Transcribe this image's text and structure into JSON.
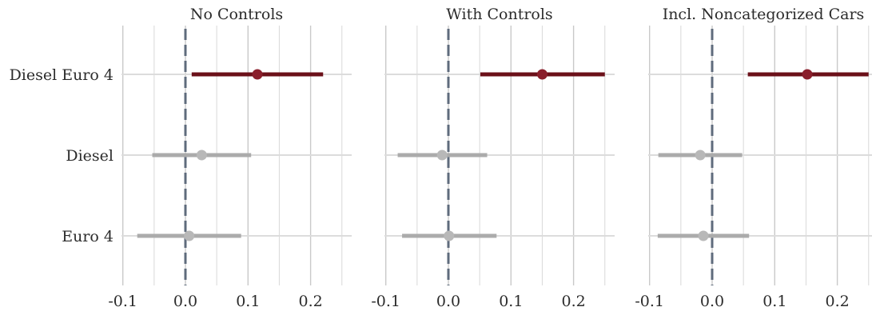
{
  "chart_data": {
    "type": "forest",
    "rows": [
      "Diesel Euro 4",
      "Diesel",
      "Euro 4"
    ],
    "x_ticks": [
      -0.1,
      0.0,
      0.1,
      0.2
    ],
    "x_tick_labels": [
      "-0.1",
      "0.0",
      "0.1",
      "0.2"
    ],
    "xlim": [
      -0.1,
      0.25
    ],
    "reference_line": 0.0,
    "grid": true,
    "colors": {
      "significant": "#6b1019",
      "nonsignificant": "#ababab",
      "reference": "#5f6b7c",
      "grid": "#d8d8d8"
    },
    "panels": [
      {
        "title": "No Controls",
        "estimates": [
          {
            "row": "Diesel Euro 4",
            "estimate": 0.115,
            "lower": 0.01,
            "upper": 0.22,
            "significant": true
          },
          {
            "row": "Diesel",
            "estimate": 0.026,
            "lower": -0.053,
            "upper": 0.105,
            "significant": false
          },
          {
            "row": "Euro 4",
            "estimate": 0.006,
            "lower": -0.077,
            "upper": 0.089,
            "significant": false
          }
        ]
      },
      {
        "title": "With Controls",
        "estimates": [
          {
            "row": "Diesel Euro 4",
            "estimate": 0.15,
            "lower": 0.051,
            "upper": 0.25,
            "significant": true
          },
          {
            "row": "Diesel",
            "estimate": -0.01,
            "lower": -0.081,
            "upper": 0.062,
            "significant": false
          },
          {
            "row": "Euro 4",
            "estimate": 0.001,
            "lower": -0.074,
            "upper": 0.077,
            "significant": false
          }
        ]
      },
      {
        "title": "Incl. Noncategorized Cars",
        "estimates": [
          {
            "row": "Diesel Euro 4",
            "estimate": 0.152,
            "lower": 0.057,
            "upper": 0.25,
            "significant": true
          },
          {
            "row": "Diesel",
            "estimate": -0.019,
            "lower": -0.086,
            "upper": 0.048,
            "significant": false
          },
          {
            "row": "Euro 4",
            "estimate": -0.014,
            "lower": -0.087,
            "upper": 0.059,
            "significant": false
          }
        ]
      }
    ]
  }
}
